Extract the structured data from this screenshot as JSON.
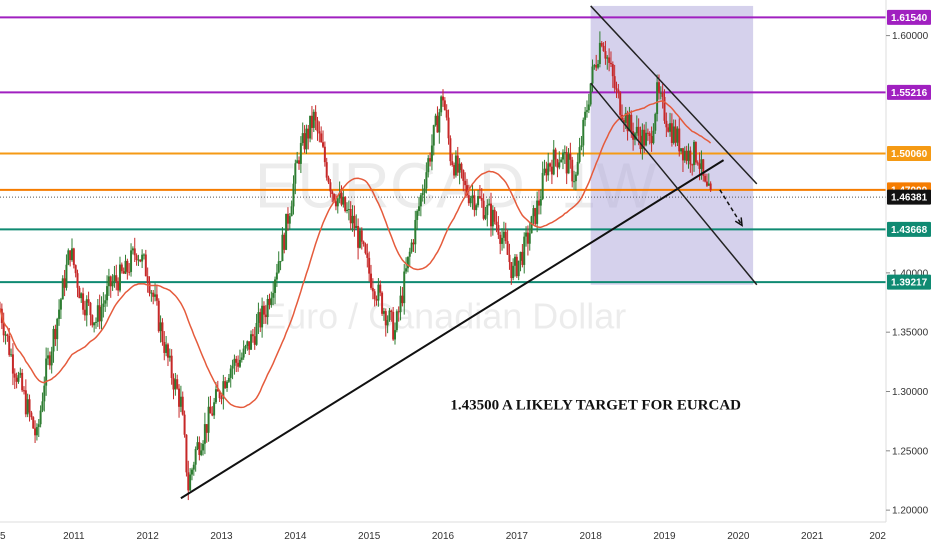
{
  "chart_data": {
    "type": "candlestick",
    "symbol_watermark": "EURCAD, 1W",
    "description_watermark": "Euro / Canadian Dollar",
    "annotation": "1.43500 A LIKELY TARGET FOR EURCAD",
    "x_ticks": [
      "5",
      "2011",
      "2012",
      "2013",
      "2014",
      "2015",
      "2016",
      "2017",
      "2018",
      "2019",
      "2020",
      "2021",
      "202"
    ],
    "y_ticks": [
      "1.60000",
      "1.40000",
      "1.35000",
      "1.30000",
      "1.25000",
      "1.20000"
    ],
    "ylim": [
      1.19,
      1.63
    ],
    "xlim": [
      2010.0,
      2022.0
    ],
    "levels": [
      {
        "price": 1.6154,
        "label": "1.61540",
        "color": "#a020c0"
      },
      {
        "price": 1.55216,
        "label": "1.55216",
        "color": "#a020c0"
      },
      {
        "price": 1.5006,
        "label": "1.50060",
        "color": "#f59a14"
      },
      {
        "price": 1.47,
        "label": "1.47000",
        "color": "#f57c00"
      },
      {
        "price": 1.43668,
        "label": "1.43668",
        "color": "#0f8a72"
      },
      {
        "price": 1.39217,
        "label": "1.39217",
        "color": "#0f8a72"
      }
    ],
    "current_price": {
      "price": 1.46381,
      "label": "1.46381",
      "color": "#111111"
    },
    "price_path": [
      [
        2010.0,
        1.37
      ],
      [
        2010.15,
        1.33
      ],
      [
        2010.3,
        1.3
      ],
      [
        2010.5,
        1.26
      ],
      [
        2010.6,
        1.31
      ],
      [
        2010.8,
        1.37
      ],
      [
        2010.95,
        1.42
      ],
      [
        2011.1,
        1.38
      ],
      [
        2011.3,
        1.36
      ],
      [
        2011.5,
        1.39
      ],
      [
        2011.7,
        1.4
      ],
      [
        2011.85,
        1.42
      ],
      [
        2012.0,
        1.4
      ],
      [
        2012.15,
        1.36
      ],
      [
        2012.3,
        1.32
      ],
      [
        2012.45,
        1.29
      ],
      [
        2012.55,
        1.22
      ],
      [
        2012.65,
        1.25
      ],
      [
        2012.85,
        1.28
      ],
      [
        2013.1,
        1.32
      ],
      [
        2013.3,
        1.33
      ],
      [
        2013.6,
        1.37
      ],
      [
        2013.85,
        1.43
      ],
      [
        2014.05,
        1.5
      ],
      [
        2014.25,
        1.53
      ],
      [
        2014.5,
        1.47
      ],
      [
        2014.8,
        1.44
      ],
      [
        2015.0,
        1.4
      ],
      [
        2015.2,
        1.37
      ],
      [
        2015.35,
        1.35
      ],
      [
        2015.5,
        1.4
      ],
      [
        2015.75,
        1.48
      ],
      [
        2016.0,
        1.55
      ],
      [
        2016.1,
        1.5
      ],
      [
        2016.3,
        1.47
      ],
      [
        2016.5,
        1.46
      ],
      [
        2016.75,
        1.44
      ],
      [
        2016.95,
        1.4
      ],
      [
        2017.1,
        1.42
      ],
      [
        2017.3,
        1.46
      ],
      [
        2017.4,
        1.49
      ],
      [
        2017.6,
        1.5
      ],
      [
        2017.8,
        1.48
      ],
      [
        2018.0,
        1.56
      ],
      [
        2018.15,
        1.6
      ],
      [
        2018.35,
        1.55
      ],
      [
        2018.55,
        1.52
      ],
      [
        2018.8,
        1.51
      ],
      [
        2018.9,
        1.55
      ],
      [
        2019.1,
        1.52
      ],
      [
        2019.3,
        1.5
      ],
      [
        2019.45,
        1.5
      ],
      [
        2019.55,
        1.47
      ],
      [
        2019.65,
        1.46
      ]
    ],
    "trendline": [
      [
        2012.45,
        1.21
      ],
      [
        2019.8,
        1.495
      ]
    ],
    "channel_upper": [
      [
        2018.0,
        1.625
      ],
      [
        2020.25,
        1.475
      ]
    ],
    "channel_lower": [
      [
        2018.0,
        1.56
      ],
      [
        2020.25,
        1.39
      ]
    ],
    "channel_box": {
      "x0": 2018.0,
      "x1": 2020.2,
      "color": "#b3acdc"
    },
    "projection_arrow": [
      [
        2019.75,
        1.47
      ],
      [
        2020.05,
        1.44
      ]
    ]
  }
}
